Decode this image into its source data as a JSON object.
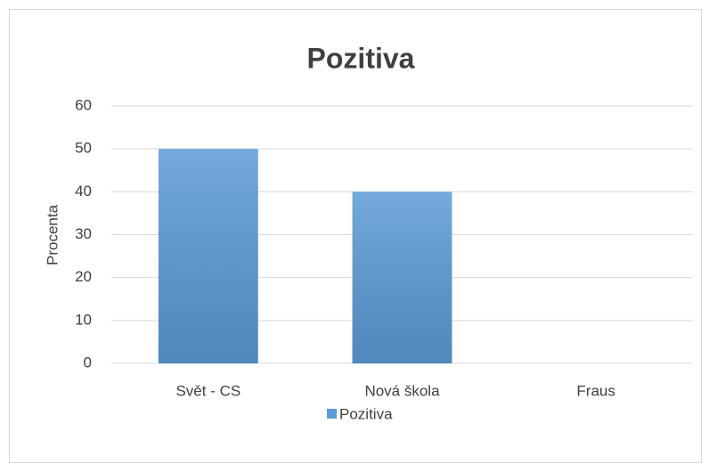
{
  "chart_data": {
    "type": "bar",
    "title": "Pozitiva",
    "y_label": "Procenta",
    "categories": [
      "Svět - CS",
      "Nová škola",
      "Fraus"
    ],
    "series": [
      {
        "name": "Pozitiva",
        "color": "#5b9bd5",
        "values": [
          50,
          40,
          0
        ]
      }
    ],
    "ylim": [
      0,
      60
    ],
    "yticks": [
      0,
      10,
      20,
      30,
      40,
      50,
      60
    ],
    "grid": true,
    "legend": "bottom"
  }
}
